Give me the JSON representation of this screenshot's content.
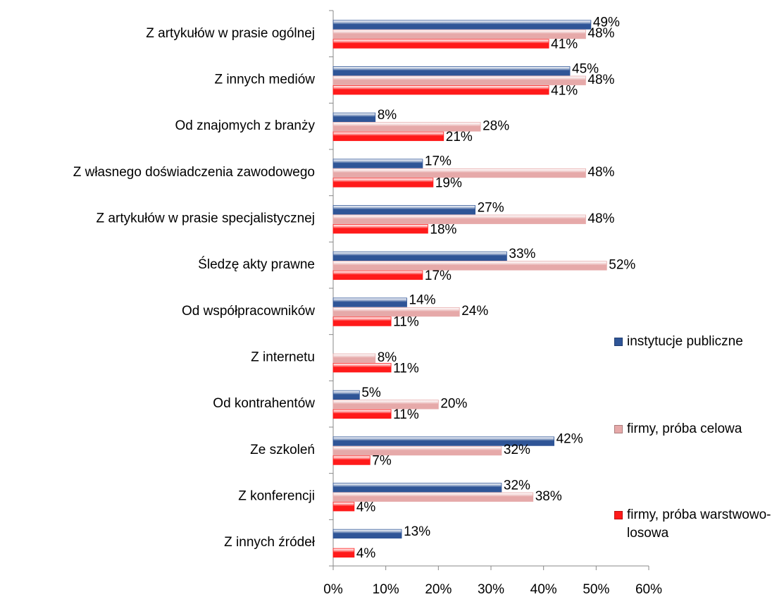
{
  "chart_data": {
    "type": "hbar",
    "categories": [
      "Z artykułów w prasie ogólnej",
      "Z innych mediów",
      "Od znajomych z branży",
      "Z własnego doświadczenia zawodowego",
      "Z artykułów w prasie specjalistycznej",
      "Śledzę akty prawne",
      "Od współpracowników",
      "Z internetu",
      "Od kontrahentów",
      "Ze szkoleń",
      "Z konferencji",
      "Z innych źródeł"
    ],
    "series": [
      {
        "name": "instytucje publiczne",
        "color": "#2f5597",
        "values": [
          49,
          45,
          8,
          17,
          27,
          33,
          14,
          null,
          5,
          42,
          32,
          13
        ],
        "value_labels": [
          "49%",
          "45%",
          "8%",
          "17%",
          "27%",
          "33%",
          "14%",
          null,
          "5%",
          "42%",
          "32%",
          "13%"
        ]
      },
      {
        "name": "firmy, próba celowa",
        "color": "#e6a9a9",
        "values": [
          48,
          48,
          28,
          48,
          48,
          52,
          24,
          8,
          20,
          32,
          38,
          null
        ],
        "value_labels": [
          "48%",
          "48%",
          "28%",
          "48%",
          "48%",
          "52%",
          "24%",
          "8%",
          "20%",
          "32%",
          "38%",
          null
        ]
      },
      {
        "name": "firmy, próba warstwowo-losowa",
        "color": "#ff1a1a",
        "values": [
          41,
          41,
          21,
          19,
          18,
          17,
          11,
          11,
          11,
          7,
          4,
          4
        ],
        "value_labels": [
          "41%",
          "41%",
          "21%",
          "19%",
          "18%",
          "17%",
          "11%",
          "11%",
          "11%",
          "7%",
          "4%",
          "4%"
        ]
      }
    ],
    "xlim": [
      0,
      60
    ],
    "xticks": [
      {
        "value": 0,
        "label": "0%"
      },
      {
        "value": 10,
        "label": "10%"
      },
      {
        "value": 20,
        "label": "20%"
      },
      {
        "value": 30,
        "label": "30%"
      },
      {
        "value": 40,
        "label": "40%"
      },
      {
        "value": 50,
        "label": "50%"
      },
      {
        "value": 60,
        "label": "60%"
      }
    ],
    "legend": "right"
  }
}
